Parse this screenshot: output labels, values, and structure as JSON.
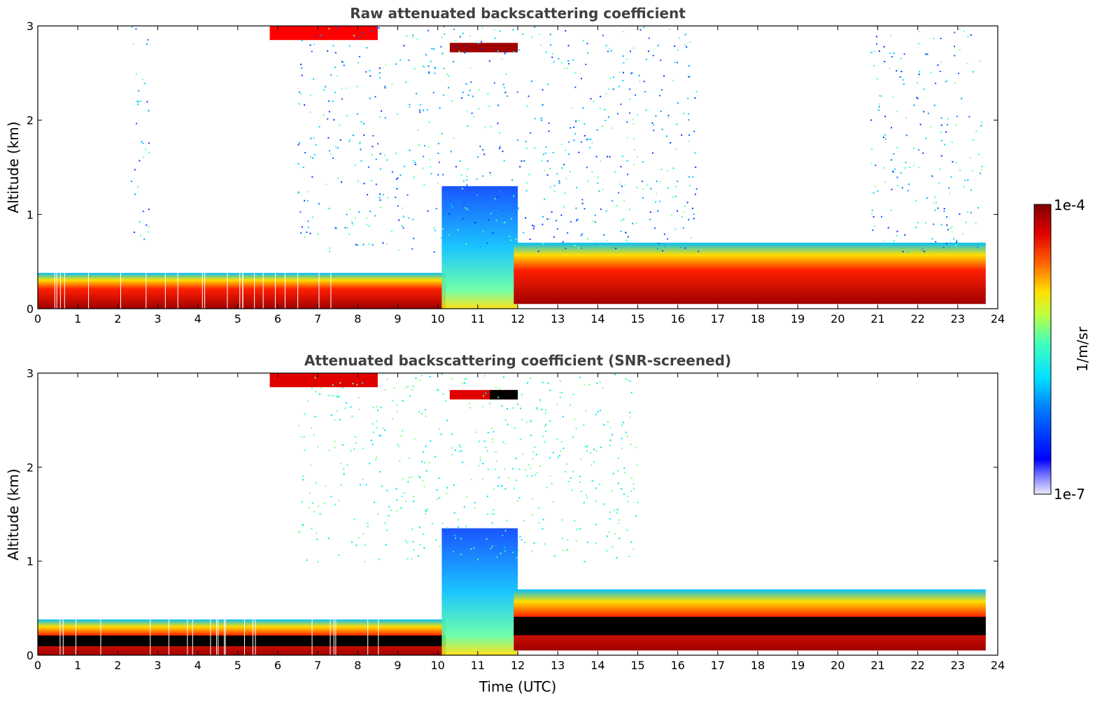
{
  "chart_data": [
    {
      "type": "heatmap",
      "title": "Raw attenuated backscattering coefficient",
      "xlabel": "",
      "ylabel": "Altitude (km)",
      "xlim": [
        0,
        24
      ],
      "ylim": [
        0,
        3
      ],
      "xticks": [
        "0",
        "1",
        "2",
        "3",
        "4",
        "5",
        "6",
        "7",
        "8",
        "9",
        "10",
        "11",
        "12",
        "13",
        "14",
        "15",
        "16",
        "17",
        "18",
        "19",
        "20",
        "21",
        "22",
        "23",
        "24"
      ],
      "yticks": [
        "0",
        "1",
        "2",
        "3"
      ],
      "screened": false,
      "features": [
        {
          "name": "boundary-layer",
          "x": [
            0,
            10.2
          ],
          "y": [
            0,
            0.38
          ],
          "level": "high"
        },
        {
          "name": "aerosol-plume",
          "x": [
            10.1,
            12.0
          ],
          "y": [
            0,
            1.3
          ],
          "level": "mid"
        },
        {
          "name": "descending-layer",
          "x": [
            11.9,
            23.7
          ],
          "y": [
            0.05,
            0.7
          ],
          "level": "high"
        },
        {
          "name": "cloud-upper",
          "x": [
            5.8,
            8.5
          ],
          "y": [
            2.85,
            3.0
          ],
          "level": "high"
        },
        {
          "name": "cloud-thin",
          "x": [
            10.3,
            12.0
          ],
          "y": [
            2.72,
            2.82
          ],
          "level": "high"
        },
        {
          "name": "noise-column",
          "x": [
            2.3,
            2.8
          ],
          "y": [
            0.6,
            3.0
          ],
          "level": "low"
        },
        {
          "name": "noise-column",
          "x": [
            20.8,
            23.6
          ],
          "y": [
            0.6,
            3.0
          ],
          "level": "low"
        },
        {
          "name": "noise-field",
          "x": [
            6.5,
            16.5
          ],
          "y": [
            0.6,
            3.0
          ],
          "level": "low"
        }
      ]
    },
    {
      "type": "heatmap",
      "title": "Attenuated backscattering coefficient (SNR-screened)",
      "xlabel": "Time (UTC)",
      "ylabel": "Altitude (km)",
      "xlim": [
        0,
        24
      ],
      "ylim": [
        0,
        3
      ],
      "xticks": [
        "0",
        "1",
        "2",
        "3",
        "4",
        "5",
        "6",
        "7",
        "8",
        "9",
        "10",
        "11",
        "12",
        "13",
        "14",
        "15",
        "16",
        "17",
        "18",
        "19",
        "20",
        "21",
        "22",
        "23",
        "24"
      ],
      "yticks": [
        "0",
        "1",
        "2",
        "3"
      ],
      "screened": true,
      "features": [
        {
          "name": "boundary-layer",
          "x": [
            0,
            10.2
          ],
          "y": [
            0,
            0.38
          ],
          "level": "high"
        },
        {
          "name": "aerosol-plume",
          "x": [
            10.1,
            12.0
          ],
          "y": [
            0,
            1.35
          ],
          "level": "mid"
        },
        {
          "name": "descending-layer",
          "x": [
            11.9,
            23.7
          ],
          "y": [
            0.05,
            0.7
          ],
          "level": "high"
        },
        {
          "name": "cloud-upper",
          "x": [
            5.8,
            8.5
          ],
          "y": [
            2.85,
            3.0
          ],
          "level": "high"
        },
        {
          "name": "cloud-thin",
          "x": [
            10.3,
            12.0
          ],
          "y": [
            2.72,
            2.82
          ],
          "level": "high"
        },
        {
          "name": "noise-field",
          "x": [
            6.5,
            15.0
          ],
          "y": [
            1.0,
            3.0
          ],
          "level": "low"
        }
      ]
    }
  ],
  "colorbar": {
    "label": "1/m/sr",
    "max_label": "1e-4",
    "min_label": "1e-7",
    "min": 1e-07,
    "max": 0.0001,
    "colormap": "jet",
    "colors": [
      "#ffffff",
      "#0000ff",
      "#00bfff",
      "#00ffaa",
      "#ffff00",
      "#ff8000",
      "#ff0000",
      "#800000"
    ]
  }
}
